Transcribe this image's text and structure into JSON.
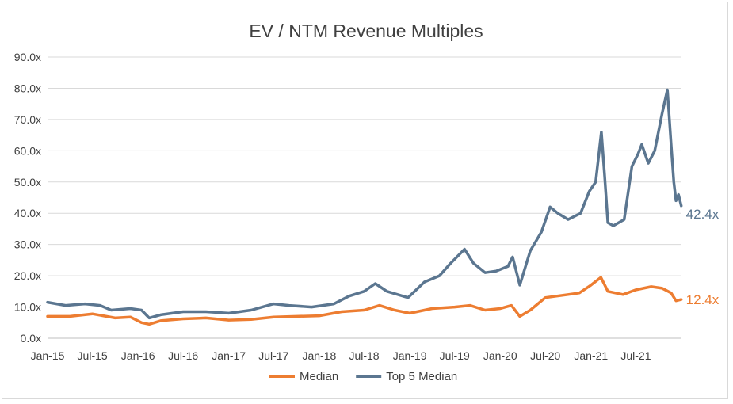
{
  "colors": {
    "median": "#ED7D31",
    "top5": "#5B7690",
    "grid": "#d9d9d9",
    "axis_text": "#404040"
  },
  "chart_data": {
    "type": "line",
    "title": "EV / NTM Revenue Multiples",
    "xlabel": "",
    "ylabel": "",
    "ylim": [
      0,
      90
    ],
    "y_ticks": [
      "0.0x",
      "10.0x",
      "20.0x",
      "30.0x",
      "40.0x",
      "50.0x",
      "60.0x",
      "70.0x",
      "80.0x",
      "90.0x"
    ],
    "x_ticks": [
      "Jan-15",
      "Jul-15",
      "Jan-16",
      "Jul-16",
      "Jan-17",
      "Jul-17",
      "Jan-18",
      "Jul-18",
      "Jan-19",
      "Jul-19",
      "Jan-20",
      "Jul-20",
      "Jan-21",
      "Jul-21"
    ],
    "grid": true,
    "legend_position": "bottom",
    "series": [
      {
        "name": "Median",
        "end_label": "12.4x",
        "points": [
          [
            "2015-01-01",
            7.0
          ],
          [
            "2015-04-01",
            7.0
          ],
          [
            "2015-07-01",
            7.8
          ],
          [
            "2015-10-01",
            6.5
          ],
          [
            "2015-12-01",
            6.8
          ],
          [
            "2016-01-15",
            5.0
          ],
          [
            "2016-02-15",
            4.5
          ],
          [
            "2016-04-01",
            5.6
          ],
          [
            "2016-07-01",
            6.2
          ],
          [
            "2016-10-01",
            6.5
          ],
          [
            "2017-01-01",
            5.8
          ],
          [
            "2017-04-01",
            6.0
          ],
          [
            "2017-07-01",
            6.8
          ],
          [
            "2017-10-01",
            7.0
          ],
          [
            "2018-01-01",
            7.2
          ],
          [
            "2018-04-01",
            8.5
          ],
          [
            "2018-07-01",
            9.0
          ],
          [
            "2018-09-01",
            10.5
          ],
          [
            "2018-11-01",
            9.0
          ],
          [
            "2019-01-01",
            8.0
          ],
          [
            "2019-04-01",
            9.5
          ],
          [
            "2019-07-01",
            10.0
          ],
          [
            "2019-09-01",
            10.5
          ],
          [
            "2019-11-01",
            9.0
          ],
          [
            "2020-01-01",
            9.5
          ],
          [
            "2020-02-15",
            10.5
          ],
          [
            "2020-03-20",
            7.0
          ],
          [
            "2020-05-01",
            9.0
          ],
          [
            "2020-07-01",
            13.0
          ],
          [
            "2020-10-01",
            14.0
          ],
          [
            "2020-11-15",
            14.5
          ],
          [
            "2021-01-01",
            17.0
          ],
          [
            "2021-02-10",
            19.5
          ],
          [
            "2021-03-10",
            15.0
          ],
          [
            "2021-05-10",
            14.0
          ],
          [
            "2021-07-01",
            15.5
          ],
          [
            "2021-09-01",
            16.5
          ],
          [
            "2021-10-15",
            16.0
          ],
          [
            "2021-11-20",
            14.5
          ],
          [
            "2021-12-10",
            12.0
          ],
          [
            "2021-12-31",
            12.4
          ]
        ]
      },
      {
        "name": "Top 5 Median",
        "end_label": "42.4x",
        "points": [
          [
            "2015-01-01",
            11.5
          ],
          [
            "2015-03-15",
            10.5
          ],
          [
            "2015-06-01",
            11.0
          ],
          [
            "2015-08-01",
            10.5
          ],
          [
            "2015-09-15",
            9.0
          ],
          [
            "2015-12-01",
            9.5
          ],
          [
            "2016-01-15",
            9.0
          ],
          [
            "2016-02-15",
            6.5
          ],
          [
            "2016-04-01",
            7.5
          ],
          [
            "2016-07-01",
            8.5
          ],
          [
            "2016-10-01",
            8.5
          ],
          [
            "2017-01-01",
            8.0
          ],
          [
            "2017-04-01",
            9.0
          ],
          [
            "2017-07-01",
            11.0
          ],
          [
            "2017-09-01",
            10.5
          ],
          [
            "2017-12-01",
            10.0
          ],
          [
            "2018-03-01",
            11.0
          ],
          [
            "2018-05-01",
            13.5
          ],
          [
            "2018-07-01",
            15.0
          ],
          [
            "2018-08-15",
            17.5
          ],
          [
            "2018-10-01",
            15.0
          ],
          [
            "2018-12-25",
            13.0
          ],
          [
            "2019-03-01",
            18.0
          ],
          [
            "2019-05-01",
            20.0
          ],
          [
            "2019-06-15",
            24.0
          ],
          [
            "2019-08-10",
            28.5
          ],
          [
            "2019-09-15",
            24.0
          ],
          [
            "2019-11-01",
            21.0
          ],
          [
            "2019-12-15",
            21.5
          ],
          [
            "2020-02-01",
            23.0
          ],
          [
            "2020-02-20",
            26.0
          ],
          [
            "2020-03-20",
            17.0
          ],
          [
            "2020-05-01",
            28.0
          ],
          [
            "2020-06-15",
            34.0
          ],
          [
            "2020-07-20",
            42.0
          ],
          [
            "2020-08-20",
            40.0
          ],
          [
            "2020-10-01",
            38.0
          ],
          [
            "2020-11-20",
            40.0
          ],
          [
            "2020-12-25",
            47.0
          ],
          [
            "2021-01-20",
            50.0
          ],
          [
            "2021-02-12",
            66.0
          ],
          [
            "2021-02-25",
            52.0
          ],
          [
            "2021-03-10",
            37.0
          ],
          [
            "2021-04-01",
            36.0
          ],
          [
            "2021-05-15",
            38.0
          ],
          [
            "2021-06-15",
            55.0
          ],
          [
            "2021-07-10",
            59.0
          ],
          [
            "2021-07-25",
            62.0
          ],
          [
            "2021-08-20",
            56.0
          ],
          [
            "2021-09-15",
            60.0
          ],
          [
            "2021-10-15",
            72.0
          ],
          [
            "2021-11-05",
            79.5
          ],
          [
            "2021-11-20",
            62.0
          ],
          [
            "2021-12-01",
            50.0
          ],
          [
            "2021-12-10",
            44.0
          ],
          [
            "2021-12-20",
            46.0
          ],
          [
            "2021-12-31",
            42.4
          ]
        ]
      }
    ]
  }
}
